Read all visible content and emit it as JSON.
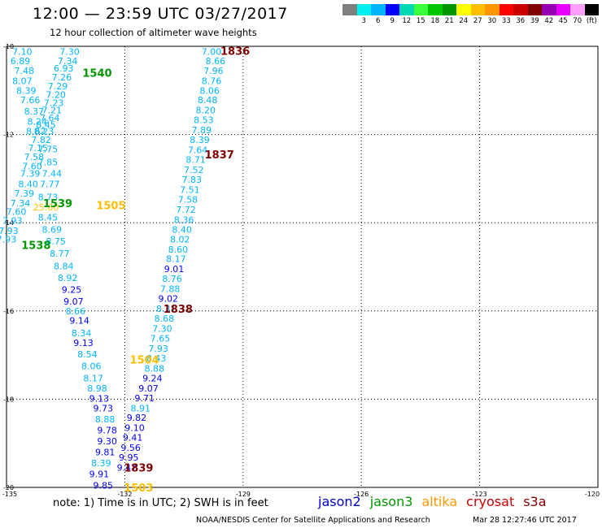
{
  "header": {
    "title": "12:00 — 23:59 UTC 03/27/2017",
    "subtitle": "12 hour collection of altimeter wave heights"
  },
  "legend": {
    "colors": [
      "#808080",
      "#00f0f0",
      "#00b4ff",
      "#0000ff",
      "#00d7b4",
      "#3cff3c",
      "#00c800",
      "#009600",
      "#ffff00",
      "#ffbe00",
      "#ff9600",
      "#ff0000",
      "#c80000",
      "#800000",
      "#9600b4",
      "#e600ff",
      "#ffa0ff",
      "#000000"
    ],
    "ticks": [
      {
        "label": "3",
        "i": 1
      },
      {
        "label": "6",
        "i": 2
      },
      {
        "label": "9",
        "i": 3
      },
      {
        "label": "12",
        "i": 4
      },
      {
        "label": "15",
        "i": 5
      },
      {
        "label": "18",
        "i": 6
      },
      {
        "label": "21",
        "i": 7
      },
      {
        "label": "24",
        "i": 8
      },
      {
        "label": "27",
        "i": 9
      },
      {
        "label": "30",
        "i": 10
      },
      {
        "label": "33",
        "i": 11
      },
      {
        "label": "36",
        "i": 12
      },
      {
        "label": "39",
        "i": 13
      },
      {
        "label": "42",
        "i": 14
      },
      {
        "label": "45",
        "i": 15
      },
      {
        "label": "70",
        "i": 16
      },
      {
        "label": "(ft)",
        "i": 17
      }
    ]
  },
  "map": {
    "lon_range": [
      -135,
      -120
    ],
    "lat_range": [
      -20,
      -10
    ],
    "y_ticks": [
      "-10",
      "-12",
      "-14",
      "-16",
      "-18",
      "-20"
    ],
    "x_ticks": [
      "-135",
      "-132",
      "-129",
      "-126",
      "-123",
      "-120"
    ],
    "grid_x": [
      -132,
      -129,
      -126,
      -123
    ],
    "grid_y": [
      -12,
      -14,
      -16,
      -18
    ],
    "observations": [
      {
        "lon": -134.6,
        "lat": -10.12,
        "v": "7.10",
        "c": "#00b4ff"
      },
      {
        "lon": -133.4,
        "lat": -10.12,
        "v": "7.30",
        "c": "#00b4ff"
      },
      {
        "lon": -134.65,
        "lat": -10.33,
        "v": "6.89",
        "c": "#00b4ff"
      },
      {
        "lon": -133.45,
        "lat": -10.33,
        "v": "7.34",
        "c": "#00b4ff"
      },
      {
        "lon": -134.55,
        "lat": -10.55,
        "v": "7.48",
        "c": "#00b4ff"
      },
      {
        "lon": -133.55,
        "lat": -10.5,
        "v": "6.93",
        "c": "#00b4ff"
      },
      {
        "lon": -133.6,
        "lat": -10.7,
        "v": "7.26",
        "c": "#00b4ff"
      },
      {
        "lon": -134.6,
        "lat": -10.78,
        "v": "8.07",
        "c": "#00b4ff"
      },
      {
        "lon": -133.7,
        "lat": -10.9,
        "v": "7.29",
        "c": "#00b4ff"
      },
      {
        "lon": -134.5,
        "lat": -11.0,
        "v": "8.39",
        "c": "#00b4ff"
      },
      {
        "lon": -133.75,
        "lat": -11.1,
        "v": "7.20",
        "c": "#00b4ff"
      },
      {
        "lon": -134.4,
        "lat": -11.22,
        "v": "7.66",
        "c": "#00b4ff"
      },
      {
        "lon": -133.8,
        "lat": -11.28,
        "v": "7.23",
        "c": "#00b4ff"
      },
      {
        "lon": -133.85,
        "lat": -11.45,
        "v": "7.21",
        "c": "#00b4ff"
      },
      {
        "lon": -134.3,
        "lat": -11.47,
        "v": "8.37",
        "c": "#00b4ff"
      },
      {
        "lon": -133.9,
        "lat": -11.62,
        "v": "7.64",
        "c": "#00b4ff"
      },
      {
        "lon": -134.22,
        "lat": -11.7,
        "v": "8.24",
        "c": "#00b4ff"
      },
      {
        "lon": -134.0,
        "lat": -11.78,
        "v": "8.45",
        "c": "#00b4ff"
      },
      {
        "lon": -134.05,
        "lat": -11.92,
        "v": "8.23",
        "c": "#00b4ff"
      },
      {
        "lon": -134.25,
        "lat": -11.92,
        "v": "8.62",
        "c": "#00b4ff"
      },
      {
        "lon": -134.12,
        "lat": -12.12,
        "v": "7.82",
        "c": "#00b4ff"
      },
      {
        "lon": -134.2,
        "lat": -12.3,
        "v": "7.15",
        "c": "#00b4ff"
      },
      {
        "lon": -133.95,
        "lat": -12.33,
        "v": "7.75",
        "c": "#00b4ff"
      },
      {
        "lon": -134.3,
        "lat": -12.5,
        "v": "7.58",
        "c": "#00b4ff"
      },
      {
        "lon": -133.95,
        "lat": -12.62,
        "v": "7.85",
        "c": "#00b4ff"
      },
      {
        "lon": -134.35,
        "lat": -12.72,
        "v": "7.60",
        "c": "#00b4ff"
      },
      {
        "lon": -134.4,
        "lat": -12.88,
        "v": "7.39",
        "c": "#00b4ff"
      },
      {
        "lon": -133.85,
        "lat": -12.88,
        "v": "7.44",
        "c": "#00b4ff"
      },
      {
        "lon": -134.45,
        "lat": -13.12,
        "v": "8.40",
        "c": "#00b4ff"
      },
      {
        "lon": -133.9,
        "lat": -13.12,
        "v": "7.77",
        "c": "#00b4ff"
      },
      {
        "lon": -134.55,
        "lat": -13.33,
        "v": "7.39",
        "c": "#00b4ff"
      },
      {
        "lon": -133.95,
        "lat": -13.42,
        "v": "8.73",
        "c": "#00b4ff"
      },
      {
        "lon": -134.65,
        "lat": -13.55,
        "v": "7.34",
        "c": "#00b4ff"
      },
      {
        "lon": -134.0,
        "lat": -13.65,
        "v": "25.60",
        "c": "#ffbe00"
      },
      {
        "lon": -134.75,
        "lat": -13.75,
        "v": "7.60",
        "c": "#00b4ff"
      },
      {
        "lon": -133.95,
        "lat": -13.88,
        "v": "8.45",
        "c": "#00b4ff"
      },
      {
        "lon": -134.85,
        "lat": -13.95,
        "v": "7.93",
        "c": "#00b4ff"
      },
      {
        "lon": -134.95,
        "lat": -14.18,
        "v": "7.93",
        "c": "#00b4ff"
      },
      {
        "lon": -133.85,
        "lat": -14.15,
        "v": "8.69",
        "c": "#00b4ff"
      },
      {
        "lon": -135.0,
        "lat": -14.37,
        "v": "7.93",
        "c": "#00b4ff"
      },
      {
        "lon": -133.75,
        "lat": -14.42,
        "v": "8.75",
        "c": "#00b4ff"
      },
      {
        "lon": -133.65,
        "lat": -14.7,
        "v": "8.77",
        "c": "#00b4ff"
      },
      {
        "lon": -133.55,
        "lat": -14.98,
        "v": "8.84",
        "c": "#00b4ff"
      },
      {
        "lon": -133.45,
        "lat": -15.25,
        "v": "8.92",
        "c": "#00b4ff"
      },
      {
        "lon": -133.35,
        "lat": -15.52,
        "v": "9.25",
        "c": "#0000ff"
      },
      {
        "lon": -133.3,
        "lat": -15.78,
        "v": "9.07",
        "c": "#0000ff"
      },
      {
        "lon": -133.25,
        "lat": -16.0,
        "v": "8.66",
        "c": "#00b4ff"
      },
      {
        "lon": -133.15,
        "lat": -16.22,
        "v": "9.14",
        "c": "#0000ff"
      },
      {
        "lon": -133.1,
        "lat": -16.5,
        "v": "8.34",
        "c": "#00b4ff"
      },
      {
        "lon": -133.05,
        "lat": -16.72,
        "v": "9.13",
        "c": "#0000ff"
      },
      {
        "lon": -132.95,
        "lat": -16.98,
        "v": "8.54",
        "c": "#00b4ff"
      },
      {
        "lon": -132.85,
        "lat": -17.25,
        "v": "8.06",
        "c": "#00b4ff"
      },
      {
        "lon": -132.8,
        "lat": -17.52,
        "v": "8.17",
        "c": "#00b4ff"
      },
      {
        "lon": -132.7,
        "lat": -17.75,
        "v": "8.98",
        "c": "#00b4ff"
      },
      {
        "lon": -132.65,
        "lat": -17.98,
        "v": "9.13",
        "c": "#0000ff"
      },
      {
        "lon": -132.55,
        "lat": -18.2,
        "v": "9.73",
        "c": "#0000ff"
      },
      {
        "lon": -132.5,
        "lat": -18.45,
        "v": "8.88",
        "c": "#00b4ff"
      },
      {
        "lon": -132.45,
        "lat": -18.7,
        "v": "9.78",
        "c": "#0000ff"
      },
      {
        "lon": -132.45,
        "lat": -18.95,
        "v": "9.30",
        "c": "#0000ff"
      },
      {
        "lon": -132.5,
        "lat": -19.2,
        "v": "9.81",
        "c": "#0000ff"
      },
      {
        "lon": -132.6,
        "lat": -19.45,
        "v": "8.39",
        "c": "#00b4ff"
      },
      {
        "lon": -132.65,
        "lat": -19.7,
        "v": "9.91",
        "c": "#0000ff"
      },
      {
        "lon": -132.55,
        "lat": -19.95,
        "v": "9.85",
        "c": "#0000ff"
      },
      {
        "lon": -129.8,
        "lat": -10.12,
        "v": "7.00",
        "c": "#00b4ff"
      },
      {
        "lon": -129.7,
        "lat": -10.33,
        "v": "8.66",
        "c": "#00b4ff"
      },
      {
        "lon": -129.75,
        "lat": -10.55,
        "v": "7.96",
        "c": "#00b4ff"
      },
      {
        "lon": -129.8,
        "lat": -10.78,
        "v": "8.76",
        "c": "#00b4ff"
      },
      {
        "lon": -129.85,
        "lat": -11.0,
        "v": "8.06",
        "c": "#00b4ff"
      },
      {
        "lon": -129.9,
        "lat": -11.22,
        "v": "8.48",
        "c": "#00b4ff"
      },
      {
        "lon": -129.95,
        "lat": -11.45,
        "v": "8.20",
        "c": "#00b4ff"
      },
      {
        "lon": -130.0,
        "lat": -11.67,
        "v": "8.53",
        "c": "#00b4ff"
      },
      {
        "lon": -130.05,
        "lat": -11.9,
        "v": "7.89",
        "c": "#00b4ff"
      },
      {
        "lon": -130.1,
        "lat": -12.12,
        "v": "8.39",
        "c": "#00b4ff"
      },
      {
        "lon": -130.15,
        "lat": -12.35,
        "v": "7.64",
        "c": "#00b4ff"
      },
      {
        "lon": -130.2,
        "lat": -12.57,
        "v": "8.71",
        "c": "#00b4ff"
      },
      {
        "lon": -130.25,
        "lat": -12.8,
        "v": "7.52",
        "c": "#00b4ff"
      },
      {
        "lon": -130.3,
        "lat": -13.02,
        "v": "7.83",
        "c": "#00b4ff"
      },
      {
        "lon": -130.35,
        "lat": -13.25,
        "v": "7.51",
        "c": "#00b4ff"
      },
      {
        "lon": -130.4,
        "lat": -13.47,
        "v": "7.58",
        "c": "#00b4ff"
      },
      {
        "lon": -130.45,
        "lat": -13.7,
        "v": "7.72",
        "c": "#00b4ff"
      },
      {
        "lon": -130.5,
        "lat": -13.93,
        "v": "8.36",
        "c": "#00b4ff"
      },
      {
        "lon": -130.55,
        "lat": -14.15,
        "v": "8.40",
        "c": "#00b4ff"
      },
      {
        "lon": -130.6,
        "lat": -14.37,
        "v": "8.02",
        "c": "#00b4ff"
      },
      {
        "lon": -130.65,
        "lat": -14.6,
        "v": "8.60",
        "c": "#00b4ff"
      },
      {
        "lon": -130.7,
        "lat": -14.82,
        "v": "8.17",
        "c": "#00b4ff"
      },
      {
        "lon": -130.75,
        "lat": -15.05,
        "v": "9.01",
        "c": "#0000ff"
      },
      {
        "lon": -130.8,
        "lat": -15.27,
        "v": "8.76",
        "c": "#00b4ff"
      },
      {
        "lon": -130.85,
        "lat": -15.5,
        "v": "7.88",
        "c": "#00b4ff"
      },
      {
        "lon": -130.9,
        "lat": -15.72,
        "v": "9.02",
        "c": "#0000ff"
      },
      {
        "lon": -130.95,
        "lat": -15.95,
        "v": "8.31",
        "c": "#00b4ff"
      },
      {
        "lon": -131.0,
        "lat": -16.17,
        "v": "8.68",
        "c": "#00b4ff"
      },
      {
        "lon": -131.05,
        "lat": -16.4,
        "v": "7.30",
        "c": "#00b4ff"
      },
      {
        "lon": -131.1,
        "lat": -16.62,
        "v": "7.65",
        "c": "#00b4ff"
      },
      {
        "lon": -131.15,
        "lat": -16.85,
        "v": "7.93",
        "c": "#00b4ff"
      },
      {
        "lon": -131.2,
        "lat": -17.07,
        "v": "8.43",
        "c": "#00b4ff"
      },
      {
        "lon": -131.25,
        "lat": -17.3,
        "v": "8.88",
        "c": "#00b4ff"
      },
      {
        "lon": -131.3,
        "lat": -17.52,
        "v": "9.24",
        "c": "#0000ff"
      },
      {
        "lon": -131.4,
        "lat": -17.75,
        "v": "9.07",
        "c": "#0000ff"
      },
      {
        "lon": -131.5,
        "lat": -17.97,
        "v": "9.71",
        "c": "#0000ff"
      },
      {
        "lon": -131.6,
        "lat": -18.2,
        "v": "8.91",
        "c": "#00b4ff"
      },
      {
        "lon": -131.7,
        "lat": -18.42,
        "v": "9.82",
        "c": "#0000ff"
      },
      {
        "lon": -131.75,
        "lat": -18.65,
        "v": "9.10",
        "c": "#0000ff"
      },
      {
        "lon": -131.8,
        "lat": -18.87,
        "v": "9.41",
        "c": "#0000ff"
      },
      {
        "lon": -131.85,
        "lat": -19.1,
        "v": "9.56",
        "c": "#0000ff"
      },
      {
        "lon": -131.9,
        "lat": -19.32,
        "v": "9.95",
        "c": "#0000ff"
      },
      {
        "lon": -131.95,
        "lat": -19.55,
        "v": "9.47",
        "c": "#0000ff"
      }
    ],
    "time_labels": [
      {
        "lon": -129.2,
        "lat": -10.1,
        "t": "1836",
        "c": "#800000"
      },
      {
        "lon": -132.7,
        "lat": -10.6,
        "t": "1540",
        "c": "#009600"
      },
      {
        "lon": -129.6,
        "lat": -12.45,
        "t": "1837",
        "c": "#800000"
      },
      {
        "lon": -133.7,
        "lat": -13.55,
        "t": "1539",
        "c": "#009600"
      },
      {
        "lon": -132.35,
        "lat": -13.6,
        "t": "1505",
        "c": "#ffbe00"
      },
      {
        "lon": -134.25,
        "lat": -14.5,
        "t": "1538",
        "c": "#009600"
      },
      {
        "lon": -130.65,
        "lat": -15.95,
        "t": "1838",
        "c": "#800000"
      },
      {
        "lon": -131.5,
        "lat": -17.1,
        "t": "1504",
        "c": "#ffbe00"
      },
      {
        "lon": -131.65,
        "lat": -19.55,
        "t": "1839",
        "c": "#800000"
      },
      {
        "lon": -131.65,
        "lat": -20.0,
        "t": "1503",
        "c": "#ffbe00"
      }
    ]
  },
  "footer": {
    "note": "note: 1) Time is in UTC; 2) SWH is in feet",
    "satellites": [
      {
        "name": "jason2",
        "color": "#0000cc"
      },
      {
        "name": "jason3",
        "color": "#009600"
      },
      {
        "name": "altika",
        "color": "#ff9600"
      },
      {
        "name": "cryosat",
        "color": "#cc0000"
      },
      {
        "name": "s3a",
        "color": "#800000"
      }
    ],
    "credit": "NOAA/NESDIS Center for Satellite Applications and Research",
    "timestamp": "Mar 28 12:27:46 UTC 2017"
  }
}
